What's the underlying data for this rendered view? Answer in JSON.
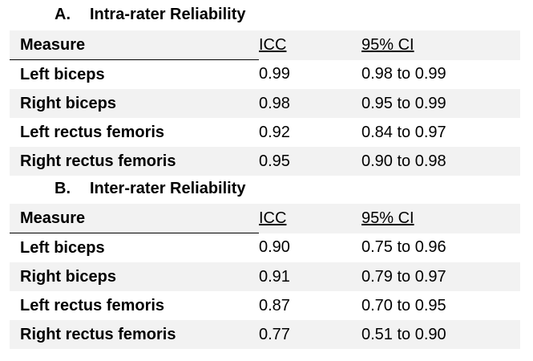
{
  "sections": [
    {
      "letter": "A.",
      "title": "Intra-rater Reliability",
      "headers": {
        "measure": "Measure",
        "icc": "ICC",
        "ci": "95% CI"
      },
      "rows": [
        {
          "measure": "Left biceps",
          "icc": "0.99",
          "ci": "0.98 to 0.99"
        },
        {
          "measure": "Right biceps",
          "icc": "0.98",
          "ci": "0.95 to 0.99"
        },
        {
          "measure": "Left rectus femoris",
          "icc": "0.92",
          "ci": "0.84 to 0.97"
        },
        {
          "measure": "Right rectus femoris",
          "icc": "0.95",
          "ci": "0.90 to 0.98"
        }
      ]
    },
    {
      "letter": "B.",
      "title": "Inter-rater Reliability",
      "headers": {
        "measure": "Measure",
        "icc": "ICC",
        "ci": "95% CI"
      },
      "rows": [
        {
          "measure": "Left biceps",
          "icc": "0.90",
          "ci": "0.75 to 0.96"
        },
        {
          "measure": "Right biceps",
          "icc": "0.91",
          "ci": "0.79 to 0.97"
        },
        {
          "measure": "Left rectus femoris",
          "icc": "0.87",
          "ci": "0.70 to 0.95"
        },
        {
          "measure": "Right rectus femoris",
          "icc": "0.77",
          "ci": "0.51 to 0.90"
        }
      ]
    }
  ]
}
